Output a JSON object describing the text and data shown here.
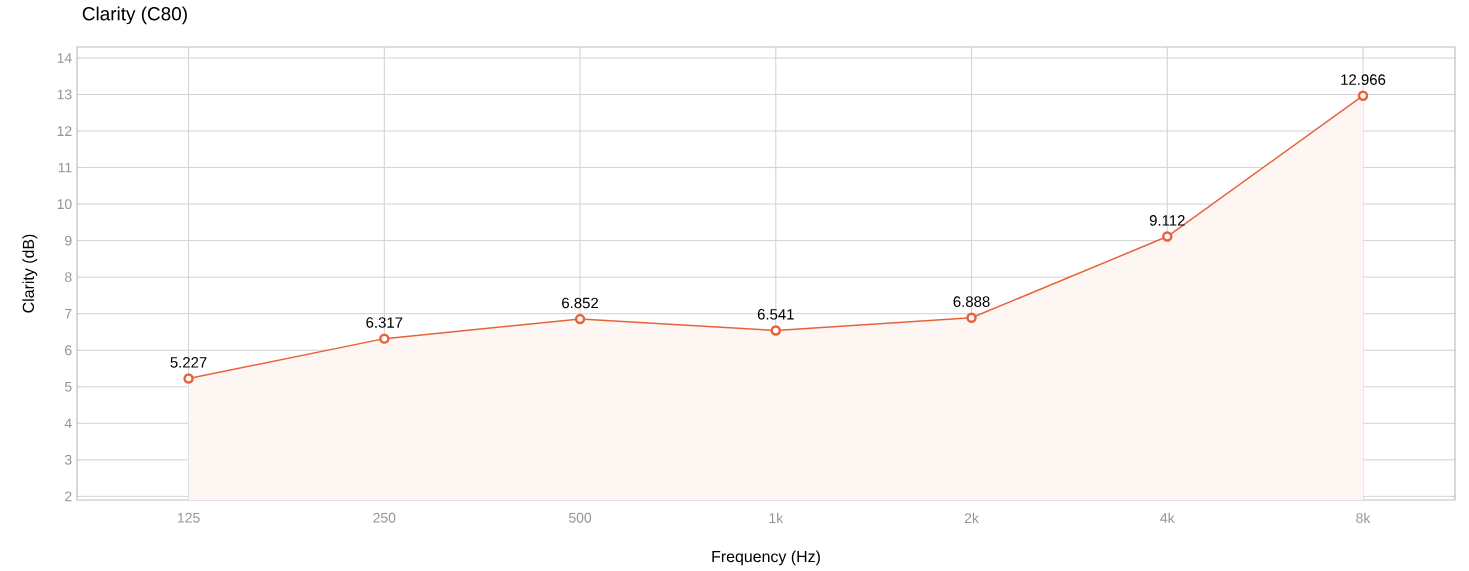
{
  "chart_data": {
    "type": "area",
    "title": "Clarity (C80)",
    "xlabel": "Frequency (Hz)",
    "ylabel": "Clarity (dB)",
    "categories": [
      "125",
      "250",
      "500",
      "1k",
      "2k",
      "4k",
      "8k"
    ],
    "values": [
      5.227,
      6.317,
      6.852,
      6.541,
      6.888,
      9.112,
      12.966
    ],
    "color": "#e8623a",
    "ylim": [
      1.9,
      14.3
    ],
    "yticks": [
      2,
      3,
      4,
      5,
      6,
      7,
      8,
      9,
      10,
      11,
      12,
      13,
      14
    ],
    "grid": true,
    "marker": "circle",
    "line_style": "solid",
    "data_labels": true
  }
}
